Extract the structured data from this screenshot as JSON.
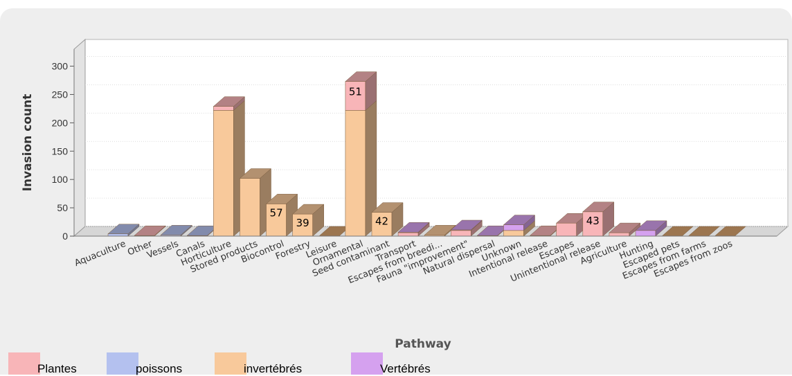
{
  "colors": {
    "Plantes": "#f8b5b8",
    "poissons": "#b4c1ef",
    "invertebres": "#f8c99b",
    "Vertebres": "#d5a1ef"
  },
  "chart_data": {
    "type": "bar",
    "xlabel": "Pathway",
    "ylabel": "Invasion count",
    "ylim": [
      0,
      330
    ],
    "yticks": [
      0,
      50,
      100,
      150,
      200,
      250,
      300
    ],
    "grid": true,
    "legend_position": "bottom",
    "categories": [
      "Aquaculture",
      "Other",
      "Vessels",
      "Canals",
      "Horticulture",
      "Stored products",
      "Biocontrol",
      "Forestry",
      "Leisure",
      "Ornamental",
      "Seed contaminant",
      "Transport",
      "Escapes from breedi...",
      "Fauna \"improvement\"",
      "Natural dispersal",
      "Unknown",
      "Intentional release",
      "Escapes",
      "Unintentional release",
      "Agriculture",
      "Hunting",
      "Escaped pets",
      "Escapes from farms",
      "Escapes from zoos"
    ],
    "series": [
      {
        "name": "invertébrés",
        "key": "invertebres",
        "values": [
          0,
          0,
          0,
          0,
          222,
          102,
          57,
          39,
          0,
          222,
          42,
          0,
          2,
          0,
          0,
          10,
          0,
          0,
          0,
          0,
          0,
          0,
          0,
          0
        ]
      },
      {
        "name": "Plantes",
        "key": "Plantes",
        "values": [
          0,
          1,
          0,
          0,
          7,
          0,
          0,
          0,
          0,
          51,
          0,
          6,
          0,
          10,
          0,
          0,
          1,
          23,
          43,
          6,
          0,
          0,
          0,
          0
        ]
      },
      {
        "name": "poissons",
        "key": "poissons",
        "values": [
          4,
          0,
          2,
          1,
          0,
          0,
          0,
          0,
          0,
          0,
          0,
          0,
          0,
          0,
          0,
          0,
          0,
          0,
          0,
          0,
          0,
          0,
          0,
          0
        ]
      },
      {
        "name": "Vertébrés",
        "key": "Vertebres",
        "values": [
          0,
          0,
          0,
          0,
          0,
          0,
          0,
          0,
          0,
          0,
          0,
          1,
          0,
          1,
          1,
          10,
          0,
          0,
          0,
          0,
          10,
          0,
          0,
          0
        ]
      }
    ],
    "data_labels": [
      {
        "category": "Biocontrol",
        "text": "57"
      },
      {
        "category": "Forestry",
        "text": "39"
      },
      {
        "category": "Ornamental",
        "text": "51"
      },
      {
        "category": "Seed contaminant",
        "text": "42"
      },
      {
        "category": "Unintentional release",
        "text": "43"
      }
    ]
  },
  "legend": [
    {
      "label": "Plantes",
      "key": "Plantes"
    },
    {
      "label": "poissons",
      "key": "poissons"
    },
    {
      "label": "invertébrés",
      "key": "invertebres"
    },
    {
      "label": "Vertébrés",
      "key": "Vertebres"
    }
  ]
}
